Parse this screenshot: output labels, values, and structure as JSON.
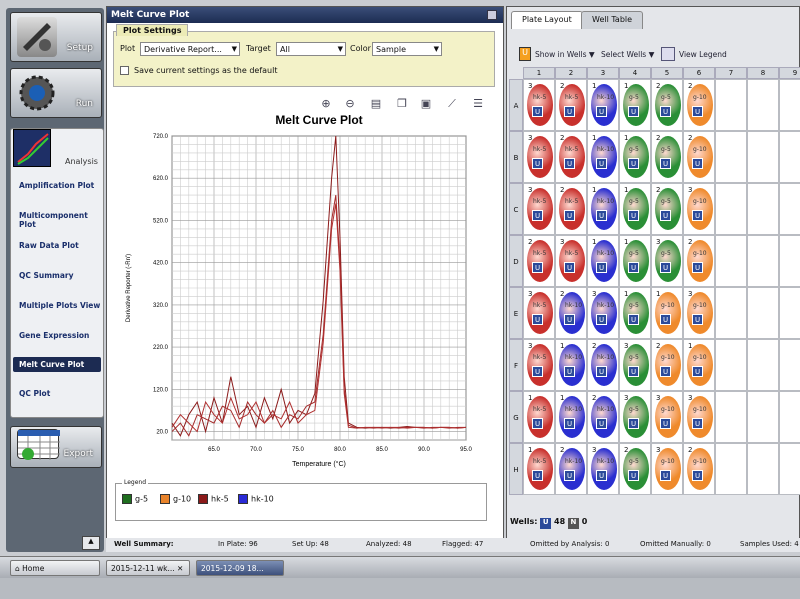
{
  "nav": {
    "setup_label": "Setup",
    "run_label": "Run",
    "analysis_label": "Analysis",
    "export_label": "Export",
    "items": [
      {
        "label": "Amplification Plot"
      },
      {
        "label": "Multicomponent Plot"
      },
      {
        "label": "Raw Data Plot"
      },
      {
        "label": "QC Summary"
      },
      {
        "label": "Multiple Plots View"
      },
      {
        "label": "Gene Expression"
      },
      {
        "label": "Melt Curve Plot",
        "selected": true
      },
      {
        "label": "QC Plot"
      }
    ]
  },
  "panel": {
    "title": "Melt Curve Plot",
    "settings_tab": "Plot Settings",
    "plot_label": "Plot",
    "plot_value": "Derivative Report...",
    "target_label": "Target",
    "target_value": "All",
    "color_label": "Color",
    "color_value": "Sample",
    "save_default": "Save current settings as the default"
  },
  "chart_data": {
    "type": "line",
    "title": "Melt Curve Plot",
    "xlabel": "Temperature (°C)",
    "ylabel": "Derivative Reporter (-Rn')",
    "xlim": [
      60,
      95
    ],
    "ylim": [
      0,
      720
    ],
    "x_ticks": [
      "65.0",
      "70.0",
      "75.0",
      "80.0",
      "85.0",
      "90.0",
      "95.0"
    ],
    "y_ticks": [
      "20.0",
      "120.0",
      "220.0",
      "320.0",
      "420.0",
      "520.0",
      "620.0",
      "720.0"
    ],
    "series": [
      {
        "name": "hk-5",
        "color": "#8b1a1a",
        "x": [
          60,
          61,
          62,
          63,
          64,
          65,
          66,
          67,
          68,
          69,
          70,
          71,
          72,
          73,
          74,
          75,
          76,
          77,
          78,
          79,
          79.5,
          80,
          80.5,
          81,
          82,
          83,
          84,
          85,
          86,
          87,
          88,
          89,
          90,
          91,
          92,
          93,
          94,
          95
        ],
        "y": [
          40,
          10,
          60,
          90,
          20,
          100,
          40,
          150,
          60,
          80,
          30,
          100,
          50,
          120,
          40,
          70,
          60,
          110,
          330,
          620,
          720,
          480,
          150,
          40,
          30,
          28,
          30,
          30,
          28,
          30,
          32,
          30,
          30,
          28,
          30,
          30,
          28,
          30
        ]
      },
      {
        "name": "hk-5",
        "color": "#a52a2a",
        "x": [
          60,
          61,
          62,
          63,
          64,
          65,
          66,
          67,
          68,
          69,
          70,
          71,
          72,
          73,
          74,
          75,
          76,
          77,
          78,
          79,
          79.5,
          80,
          80.5,
          81,
          82,
          83,
          84,
          85,
          86,
          87,
          88,
          89,
          90,
          91,
          92,
          93,
          94,
          95
        ],
        "y": [
          20,
          40,
          10,
          60,
          50,
          40,
          80,
          70,
          30,
          90,
          60,
          40,
          70,
          30,
          60,
          50,
          80,
          90,
          250,
          520,
          580,
          420,
          120,
          35,
          28,
          30,
          28,
          30,
          30,
          28,
          30,
          30,
          28,
          30,
          30,
          28,
          30,
          30
        ]
      },
      {
        "name": "hk-5",
        "color": "#b03030",
        "x": [
          60,
          61,
          62,
          63,
          64,
          65,
          66,
          67,
          68,
          69,
          70,
          71,
          72,
          73,
          74,
          75,
          76,
          77,
          78,
          79,
          79.5,
          80,
          80.5,
          81,
          82,
          83,
          84,
          85,
          86,
          87,
          88,
          89,
          90,
          91,
          92,
          93,
          94,
          95
        ],
        "y": [
          30,
          60,
          40,
          20,
          90,
          60,
          40,
          100,
          50,
          60,
          90,
          40,
          60,
          50,
          90,
          40,
          60,
          70,
          230,
          500,
          560,
          400,
          110,
          30,
          28,
          30,
          30,
          28,
          30,
          30,
          28,
          30,
          30,
          28,
          30,
          30,
          28,
          30
        ]
      }
    ],
    "grid": true
  },
  "legend": {
    "title": "Legend",
    "items": [
      {
        "label": "g-5",
        "color": "#1f6e1f"
      },
      {
        "label": "g-10",
        "color": "#e8832a"
      },
      {
        "label": "hk-5",
        "color": "#8b1a1a"
      },
      {
        "label": "hk-10",
        "color": "#2a2ad6"
      }
    ]
  },
  "right": {
    "tab_plate": "Plate Layout",
    "tab_table": "Well Table",
    "show_in_wells": "Show in Wells",
    "select_wells": "Select Wells",
    "view_legend": "View Legend",
    "cols": [
      "1",
      "2",
      "3",
      "4",
      "5",
      "6",
      "7",
      "8",
      "9"
    ],
    "rows": [
      "A",
      "B",
      "C",
      "D",
      "E",
      "F",
      "G",
      "H"
    ],
    "wells_label": "Wells:",
    "wells_u": "48",
    "wells_n": "0"
  },
  "summary": {
    "title": "Well Summary:",
    "in_plate": "In Plate: 96",
    "set_up": "Set Up: 48",
    "analyzed": "Analyzed: 48",
    "flagged": "Flagged: 47",
    "omitted_analysis": "Omitted by Analysis: 0",
    "omitted_manually": "Omitted Manually: 0",
    "samples_used": "Samples Used: 4"
  },
  "taskbar": {
    "home": "Home",
    "task1": "2015-12-11 wk...",
    "task2": "2015-12-09 18..."
  },
  "plate_wells": [
    [
      "3|hk-5|red",
      "2|hk-5|red",
      "1|hk-10|blue",
      "1|g-5|green",
      "2|g-5|green",
      "2|g-10|orange"
    ],
    [
      "3|hk-5|red",
      "2|hk-5|red",
      "1|hk-10|blue",
      "1|g-5|green",
      "2|g-5|green",
      "2|g-10|orange"
    ],
    [
      "3|hk-5|red",
      "2|hk-5|red",
      "1|hk-10|blue",
      "1|g-5|green",
      "2|g-5|green",
      "3|g-10|orange"
    ],
    [
      "2|hk-5|red",
      "3|hk-5|red",
      "1|hk-10|blue",
      "1|g-5|green",
      "3|g-5|green",
      "2|g-10|orange"
    ],
    [
      "3|hk-5|red",
      "2|hk-10|blue",
      "3|hk-10|blue",
      "1|g-5|green",
      "1|g-10|orange",
      "3|g-10|orange"
    ],
    [
      "3|hk-5|red",
      "1|hk-10|blue",
      "2|hk-10|blue",
      "3|g-5|green",
      "2|g-10|orange",
      "1|g-10|orange"
    ],
    [
      "1|hk-5|red",
      "1|hk-10|blue",
      "2|hk-10|blue",
      "3|g-5|green",
      "3|g-10|orange",
      "3|g-10|orange"
    ],
    [
      "1|hk-5|red",
      "2|hk-10|blue",
      "3|hk-10|blue",
      "2|g-5|green",
      "3|g-10|orange",
      "2|g-10|orange"
    ]
  ]
}
